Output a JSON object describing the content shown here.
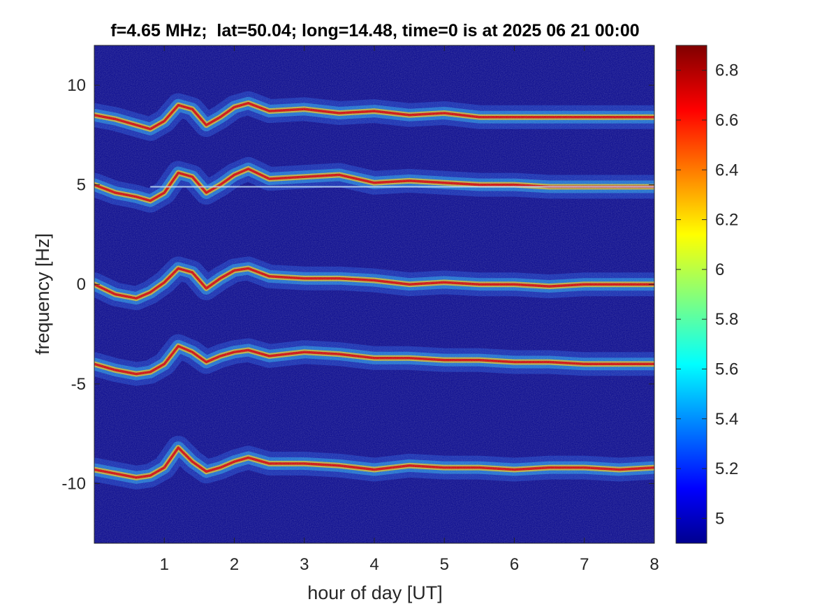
{
  "chart_data": {
    "type": "heatmap",
    "title": "f=4.65 MHz;  lat=50.04; long=14.48, time=0 is at 2025 06 21 00:00",
    "xlabel": "hour of day [UT]",
    "ylabel": "frequency [Hz]",
    "xlim": [
      0,
      8
    ],
    "ylim": [
      -13,
      12
    ],
    "xticks": [
      1,
      2,
      3,
      4,
      5,
      6,
      7,
      8
    ],
    "xtick_labels": [
      "1",
      "2",
      "3",
      "4",
      "5",
      "6",
      "7",
      "8"
    ],
    "yticks": [
      10,
      5,
      0,
      -5,
      -10
    ],
    "ytick_labels": [
      "10",
      "5",
      "0",
      "-5",
      "-10"
    ],
    "colormap": "jet",
    "background_color": "#00008f",
    "colorbar": {
      "range": [
        4.9,
        6.9
      ],
      "ticks": [
        6.8,
        6.6,
        6.4,
        6.2,
        6,
        5.8,
        5.6,
        5.4,
        5.2,
        5
      ],
      "tick_labels": [
        "6.8",
        "6.6",
        "6.4",
        "6.2",
        "6",
        "5.8",
        "5.6",
        "5.4",
        "5.2",
        "5"
      ]
    },
    "traces": [
      {
        "id": "trace-upper",
        "x": [
          0,
          0.3,
          0.6,
          0.8,
          1.0,
          1.2,
          1.4,
          1.6,
          1.8,
          2.0,
          2.2,
          2.5,
          3.0,
          3.5,
          4.0,
          4.5,
          5.0,
          5.5,
          6.0,
          6.5,
          7.0,
          7.5,
          8.0
        ],
        "y": [
          8.5,
          8.3,
          8.0,
          7.8,
          8.2,
          9.0,
          8.8,
          8.0,
          8.4,
          8.9,
          9.1,
          8.7,
          8.8,
          8.6,
          8.7,
          8.5,
          8.6,
          8.4,
          8.4,
          8.4,
          8.4,
          8.4,
          8.4
        ]
      },
      {
        "id": "trace-mid-upper",
        "x": [
          0,
          0.3,
          0.6,
          0.8,
          1.0,
          1.2,
          1.4,
          1.6,
          1.8,
          2.0,
          2.2,
          2.5,
          3.0,
          3.5,
          4.0,
          4.5,
          5.0,
          5.5,
          6.0,
          6.5,
          7.0,
          7.5,
          8.0
        ],
        "y": [
          5.0,
          4.6,
          4.4,
          4.2,
          4.6,
          5.6,
          5.4,
          4.6,
          5.0,
          5.5,
          5.8,
          5.3,
          5.4,
          5.5,
          5.1,
          5.2,
          5.1,
          5.0,
          5.0,
          4.9,
          4.9,
          4.9,
          4.9
        ]
      },
      {
        "id": "trace-center",
        "x": [
          0,
          0.3,
          0.6,
          0.8,
          1.0,
          1.2,
          1.4,
          1.6,
          1.8,
          2.0,
          2.2,
          2.5,
          3.0,
          3.5,
          4.0,
          4.5,
          5.0,
          5.5,
          6.0,
          6.5,
          7.0,
          7.5,
          8.0
        ],
        "y": [
          0.0,
          -0.5,
          -0.7,
          -0.4,
          0.1,
          0.8,
          0.6,
          -0.2,
          0.3,
          0.7,
          0.8,
          0.4,
          0.3,
          0.3,
          0.2,
          0.0,
          0.1,
          0.0,
          0.0,
          -0.1,
          0.0,
          0.0,
          0.0
        ]
      },
      {
        "id": "trace-mid-lower",
        "x": [
          0,
          0.3,
          0.6,
          0.8,
          1.0,
          1.2,
          1.4,
          1.6,
          1.8,
          2.0,
          2.2,
          2.5,
          3.0,
          3.5,
          4.0,
          4.5,
          5.0,
          5.5,
          6.0,
          6.5,
          7.0,
          7.5,
          8.0
        ],
        "y": [
          -4.0,
          -4.3,
          -4.5,
          -4.4,
          -4.0,
          -3.1,
          -3.4,
          -3.9,
          -3.6,
          -3.4,
          -3.3,
          -3.6,
          -3.4,
          -3.5,
          -3.7,
          -3.7,
          -3.8,
          -3.8,
          -3.9,
          -3.9,
          -4.0,
          -4.0,
          -4.0
        ]
      },
      {
        "id": "trace-lower",
        "x": [
          0,
          0.3,
          0.6,
          0.8,
          1.0,
          1.2,
          1.4,
          1.6,
          1.8,
          2.0,
          2.2,
          2.5,
          3.0,
          3.5,
          4.0,
          4.5,
          5.0,
          5.5,
          6.0,
          6.5,
          7.0,
          7.5,
          8.0
        ],
        "y": [
          -9.3,
          -9.5,
          -9.7,
          -9.6,
          -9.2,
          -8.2,
          -8.9,
          -9.4,
          -9.2,
          -8.9,
          -8.7,
          -9.0,
          -9.0,
          -9.1,
          -9.3,
          -9.1,
          -9.2,
          -9.2,
          -9.3,
          -9.2,
          -9.2,
          -9.3,
          -9.2
        ]
      }
    ],
    "horizontal_line": {
      "id": "carrier-line",
      "y": 4.9,
      "x_start": 0.8,
      "x_end": 8.0
    }
  }
}
